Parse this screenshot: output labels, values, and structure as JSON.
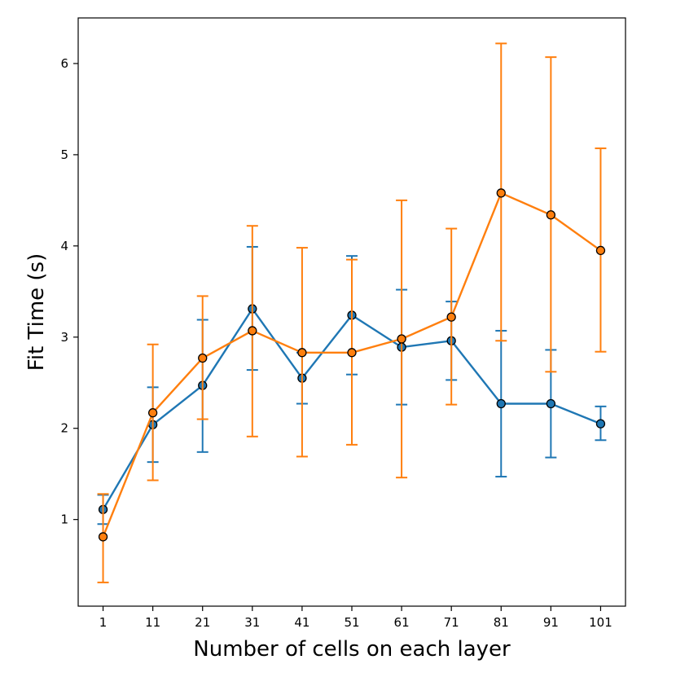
{
  "chart_data": {
    "type": "line",
    "title": "",
    "xlabel": "Number of cells on each layer",
    "ylabel": "Fit Time (s)",
    "x": [
      1,
      11,
      21,
      31,
      41,
      51,
      61,
      71,
      81,
      91,
      101
    ],
    "x_tick_labels": [
      "1",
      "11",
      "21",
      "31",
      "41",
      "51",
      "61",
      "71",
      "81",
      "91",
      "101"
    ],
    "y_ticks": [
      1,
      2,
      3,
      4,
      5,
      6
    ],
    "y_tick_labels": [
      "1",
      "2",
      "3",
      "4",
      "5",
      "6"
    ],
    "ylim": [
      0.05,
      6.5
    ],
    "grid": false,
    "legend": "none",
    "series": [
      {
        "name": "series-blue",
        "color": "#1f77b4",
        "values": [
          1.11,
          2.04,
          2.47,
          3.31,
          2.55,
          3.24,
          2.89,
          2.96,
          2.27,
          2.27,
          2.05
        ],
        "error_low": [
          0.95,
          1.63,
          1.74,
          2.64,
          2.27,
          2.59,
          2.26,
          2.53,
          1.47,
          1.68,
          1.87
        ],
        "error_high": [
          1.27,
          2.45,
          3.19,
          3.99,
          2.83,
          3.89,
          3.52,
          3.39,
          3.07,
          2.86,
          2.24
        ]
      },
      {
        "name": "series-orange",
        "color": "#ff7f0e",
        "values": [
          0.81,
          2.17,
          2.77,
          3.07,
          2.83,
          2.83,
          2.98,
          3.22,
          4.58,
          4.34,
          3.95
        ],
        "error_low": [
          0.31,
          1.43,
          2.1,
          1.91,
          1.69,
          1.82,
          1.46,
          2.26,
          2.96,
          2.62,
          2.84
        ],
        "error_high": [
          1.28,
          2.92,
          3.45,
          4.22,
          3.98,
          3.85,
          4.5,
          4.19,
          6.22,
          6.07,
          5.07
        ]
      }
    ]
  }
}
